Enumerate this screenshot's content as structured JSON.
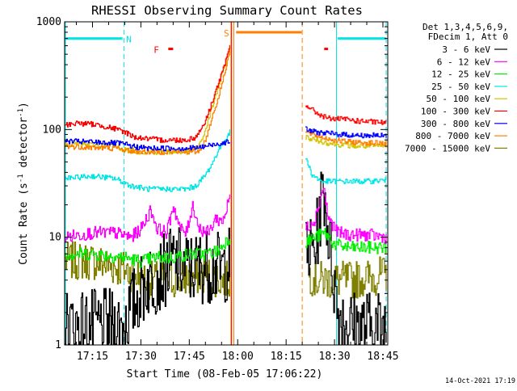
{
  "chart_data": {
    "type": "line",
    "title": "RHESSI Observing Summary Count Rates",
    "xlabel": "Start Time (08-Feb-05 17:06:22)",
    "ylabel": "Count Rate (s",
    "ylabel_sup1": "-1",
    "ylabel_mid": " detector",
    "ylabel_sup2": "-1",
    "ylabel_end": ")",
    "x_unit": "minutes since 17:00",
    "xlim": [
      6.37,
      106.5
    ],
    "yscale": "log",
    "ylim": [
      1,
      1000
    ],
    "x_ticks": [
      {
        "value": 15,
        "label": "17:15"
      },
      {
        "value": 30,
        "label": "17:30"
      },
      {
        "value": 45,
        "label": "17:45"
      },
      {
        "value": 60,
        "label": "18:00"
      },
      {
        "value": 75,
        "label": "18:15"
      },
      {
        "value": 90,
        "label": "18:30"
      },
      {
        "value": 105,
        "label": "18:45"
      }
    ],
    "y_ticks": [
      {
        "value": 1,
        "label": "1"
      },
      {
        "value": 10,
        "label": "10"
      },
      {
        "value": 100,
        "label": "100"
      },
      {
        "value": 1000,
        "label": "1000"
      }
    ],
    "legend": {
      "position": "right",
      "header": [
        "Det 1,3,4,5,6,9,",
        "FDecim 1, Att 0"
      ],
      "entries": [
        {
          "label": "3 - 6 keV",
          "color": "#000000"
        },
        {
          "label": "6 - 12 keV",
          "color": "#ff00ff"
        },
        {
          "label": "12 - 25 keV",
          "color": "#00ee00"
        },
        {
          "label": "25 - 50 keV",
          "color": "#00e5e5"
        },
        {
          "label": "50 - 100 keV",
          "color": "#d4c400"
        },
        {
          "label": "100 - 300 keV",
          "color": "#ff0000"
        },
        {
          "label": "300 - 800 keV",
          "color": "#0000ff"
        },
        {
          "label": "800 - 7000 keV",
          "color": "#ff7f00"
        },
        {
          "label": "7000 - 15000 keV",
          "color": "#808000"
        }
      ]
    },
    "annotations": [
      {
        "type": "cyan-solid-vline",
        "x": 6.6,
        "color": "#00e5e5"
      },
      {
        "type": "cyan-solid-vline",
        "x": 90.6,
        "color": "#00e5e5"
      },
      {
        "type": "cyan-dashed-vline",
        "x": 24.8,
        "color": "#00e5e5"
      },
      {
        "type": "cyan-dashed-vline",
        "x": 106.0,
        "color": "#00e5e5"
      },
      {
        "type": "orange-solid-vline",
        "x": 57.9,
        "color": "#ff7f00"
      },
      {
        "type": "orange-solid-vline",
        "x": 58.8,
        "color": "#ff7f00"
      },
      {
        "type": "orange-dashed-vline",
        "x": 80.0,
        "color": "#ff7f00"
      },
      {
        "type": "red-solid-vline",
        "x": 58.1,
        "color": "#ff0000"
      }
    ],
    "bars": [
      {
        "name": "night-bar-1",
        "x0": 6.6,
        "x1": 24.3,
        "y": 700,
        "color": "#00e5e5"
      },
      {
        "name": "night-bar-2",
        "x0": 91.0,
        "x1": 106.0,
        "y": 700,
        "color": "#00e5e5"
      },
      {
        "name": "saa-bar",
        "x0": 59.5,
        "x1": 79.8,
        "y": 800,
        "color": "#ff7f00"
      },
      {
        "name": "flare-bar-1",
        "x0": 38.5,
        "x1": 40.0,
        "y": 560,
        "color": "#ff0000"
      },
      {
        "name": "flare-bar-2",
        "x0": 86.8,
        "x1": 88.0,
        "y": 560,
        "color": "#ff0000"
      }
    ],
    "flag_labels": [
      {
        "text": "N",
        "x": 26.3,
        "y": 700,
        "color": "#00e5e5"
      },
      {
        "text": "F",
        "x": 34.8,
        "y": 560,
        "color": "#ff0000"
      },
      {
        "text": "S",
        "x": 56.5,
        "y": 800,
        "color": "#ff7f00"
      }
    ],
    "series": [
      {
        "name": "7000 - 15000 keV",
        "color": "#808000",
        "segments": [
          {
            "x": [
              6.5,
              15,
              25,
              32,
              38,
              45,
              50,
              55,
              57.5
            ],
            "y": [
              6,
              6,
              5,
              4,
              4,
              4.2,
              4.5,
              4,
              4
            ]
          },
          {
            "x": [
              82,
              85,
              90,
              95,
              100,
              106.2
            ],
            "y": [
              4.5,
              4,
              4,
              4,
              4.2,
              4.5
            ]
          }
        ]
      },
      {
        "name": "3 - 6 keV",
        "color": "#000000",
        "segments": [
          {
            "x": [
              6.5,
              12,
              20,
              24,
              28,
              32,
              36,
              40,
              45,
              50,
              55,
              57.5
            ],
            "y": [
              1.5,
              1.5,
              1.5,
              1.5,
              2.5,
              4,
              4.5,
              6,
              5,
              5.5,
              5,
              6
            ]
          },
          {
            "x": [
              81,
              84,
              86.5,
              88.5,
              91,
              95,
              100,
              106.2
            ],
            "y": [
              7,
              8,
              30,
              8,
              2,
              1.5,
              1.5,
              1.5
            ]
          }
        ]
      },
      {
        "name": "12 - 25 keV",
        "color": "#00ee00",
        "segments": [
          {
            "x": [
              6.5,
              15,
              25,
              30,
              35,
              40,
              45,
              50,
              54,
              56,
              57.5
            ],
            "y": [
              7,
              7,
              6.5,
              6,
              6.5,
              6.5,
              7,
              7,
              7.5,
              9,
              10
            ]
          },
          {
            "x": [
              81,
              84,
              87,
              90,
              95,
              100,
              106.2
            ],
            "y": [
              9,
              10,
              11,
              8.5,
              8,
              8,
              8
            ]
          }
        ]
      },
      {
        "name": "6 - 12 keV",
        "color": "#ff00ff",
        "segments": [
          {
            "x": [
              6.5,
              15,
              22,
              27,
              30,
              33,
              35,
              38,
              40,
              42,
              44,
              46,
              48,
              51,
              53,
              55,
              56.5,
              57.5
            ],
            "y": [
              10,
              11,
              11,
              10,
              12,
              18,
              12,
              11,
              20,
              12,
              11,
              20,
              12,
              11,
              15,
              14,
              18,
              25
            ]
          },
          {
            "x": [
              81,
              84,
              86.5,
              88,
              91,
              95,
              100,
              106.2
            ],
            "y": [
              12,
              15,
              30,
              15,
              11,
              10.5,
              10.5,
              10
            ]
          }
        ]
      },
      {
        "name": "25 - 50 keV",
        "color": "#00e5e5",
        "segments": [
          {
            "x": [
              6.5,
              15,
              22,
              27,
              32,
              38,
              44,
              47,
              50,
              52,
              54,
              56,
              57.5
            ],
            "y": [
              35,
              37,
              35,
              30,
              28,
              28,
              28,
              30,
              38,
              48,
              65,
              80,
              95
            ]
          },
          {
            "x": [
              81,
              83,
              86,
              90,
              95,
              100,
              106.2
            ],
            "y": [
              55,
              38,
              33,
              33,
              33,
              33,
              34
            ]
          }
        ]
      },
      {
        "name": "50 - 100 keV",
        "color": "#d4c400",
        "segments": [
          {
            "x": [
              6.5,
              15,
              22,
              25,
              30,
              35,
              40,
              45,
              48,
              50,
              52,
              54,
              56,
              57.5
            ],
            "y": [
              75,
              72,
              70,
              65,
              62,
              62,
              62,
              62,
              70,
              100,
              160,
              250,
              400,
              550
            ]
          },
          {
            "x": [
              81,
              84,
              88,
              92,
              97,
              102,
              106.2
            ],
            "y": [
              85,
              80,
              75,
              72,
              70,
              70,
              70
            ]
          }
        ]
      },
      {
        "name": "800 - 7000 keV",
        "color": "#ff7f00",
        "segments": [
          {
            "x": [
              6.5,
              15,
              22,
              27,
              32,
              38,
              44,
              48,
              50,
              52,
              54,
              56,
              57.5
            ],
            "y": [
              70,
              68,
              67,
              63,
              62,
              62,
              62,
              63,
              80,
              130,
              200,
              350,
              550
            ]
          },
          {
            "x": [
              81,
              84,
              88,
              92,
              97,
              102,
              106.2
            ],
            "y": [
              95,
              88,
              82,
              78,
              76,
              75,
              75
            ]
          }
        ]
      },
      {
        "name": "300 - 800 keV",
        "color": "#0000ff",
        "segments": [
          {
            "x": [
              6.5,
              12,
              18,
              24,
              28,
              32,
              38,
              44,
              48,
              50,
              52,
              54,
              56,
              57.5
            ],
            "y": [
              78,
              77,
              76,
              74,
              69,
              67,
              67,
              67,
              68,
              70,
              72,
              74,
              76,
              78
            ]
          },
          {
            "x": [
              81,
              84,
              88,
              92,
              97,
              102,
              106.2
            ],
            "y": [
              100,
              95,
              92,
              90,
              88,
              88,
              87
            ]
          }
        ]
      },
      {
        "name": "100 - 300 keV",
        "color": "#ff0000",
        "segments": [
          {
            "x": [
              6.5,
              10,
              15,
              20,
              25,
              28,
              32,
              36,
              40,
              44,
              47,
              50,
              52,
              54,
              56,
              57.5
            ],
            "y": [
              110,
              115,
              112,
              105,
              95,
              85,
              82,
              80,
              80,
              80,
              85,
              120,
              180,
              270,
              400,
              600
            ]
          },
          {
            "x": [
              81,
              84,
              87,
              90,
              93,
              97,
              101,
              106.2
            ],
            "y": [
              170,
              145,
              130,
              125,
              125,
              120,
              118,
              115
            ]
          }
        ]
      }
    ]
  },
  "footer": {
    "timestamp": "14-Oct-2021 17:19"
  }
}
